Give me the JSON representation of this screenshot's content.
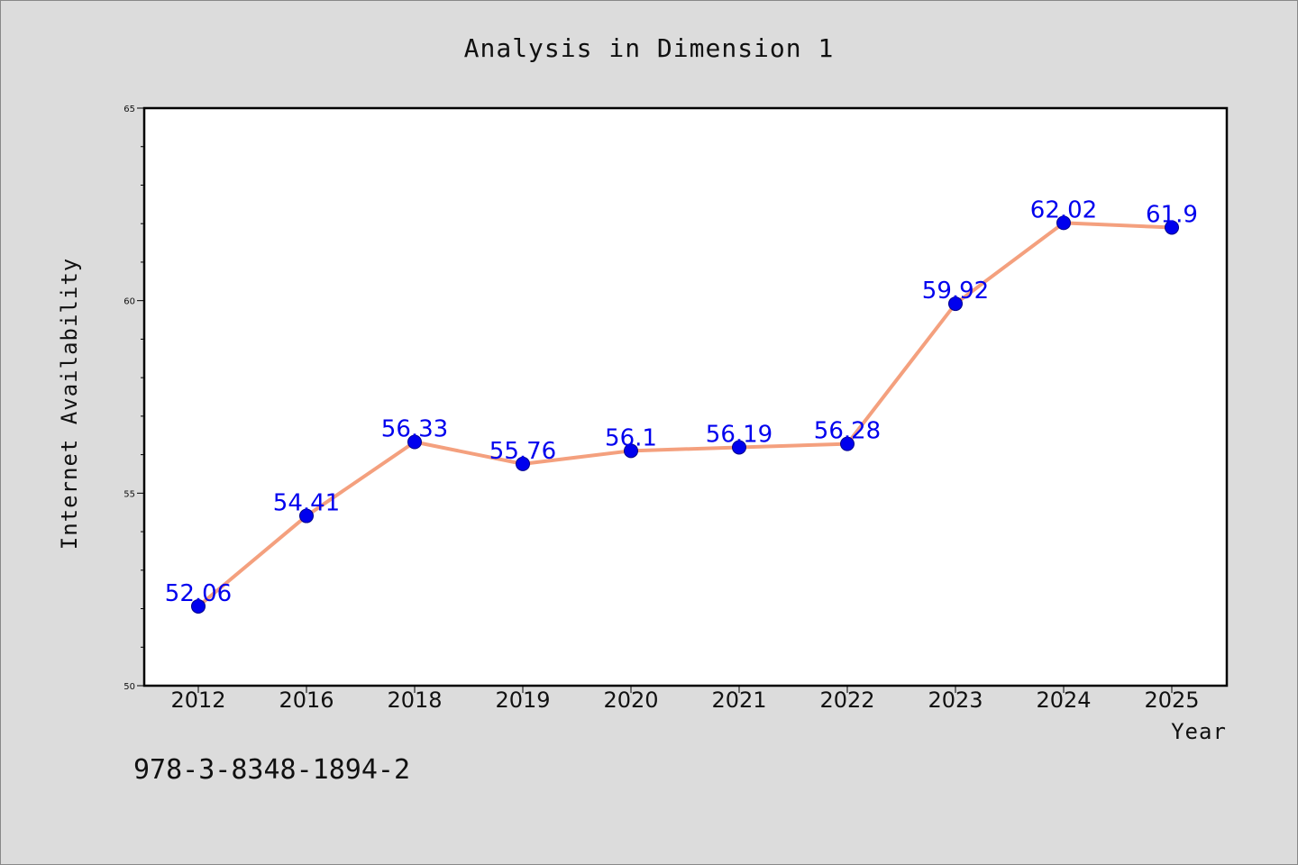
{
  "chart_data": {
    "type": "line",
    "title": "Analysis in Dimension 1",
    "xlabel": "Year",
    "ylabel": "Internet Availability",
    "categories": [
      "2012",
      "2016",
      "2018",
      "2019",
      "2020",
      "2021",
      "2022",
      "2023",
      "2024",
      "2025"
    ],
    "series": [
      {
        "values": [
          52.06,
          54.41,
          56.33,
          55.76,
          56.1,
          56.19,
          56.28,
          59.92,
          62.02,
          61.9
        ]
      }
    ],
    "data_labels": [
      "52.06",
      "54.41",
      "56.33",
      "55.76",
      "56.1",
      "56.19",
      "56.28",
      "59.92",
      "62.02",
      "61.9"
    ],
    "ylim": [
      50,
      65
    ],
    "yticks": [
      "50",
      "55",
      "60",
      "65"
    ],
    "grid": false,
    "line_color": "#f4a07e",
    "marker_color": "#0000ee",
    "label_color": "#0000ee",
    "annotation": "978-3-8348-1894-2"
  }
}
